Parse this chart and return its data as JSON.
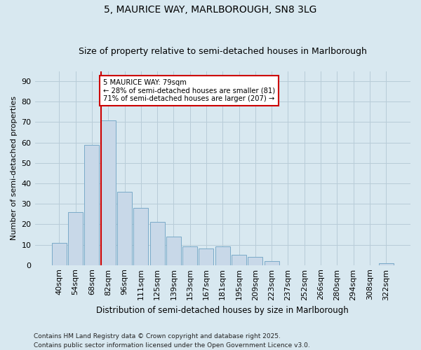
{
  "title1": "5, MAURICE WAY, MARLBOROUGH, SN8 3LG",
  "title2": "Size of property relative to semi-detached houses in Marlborough",
  "xlabel": "Distribution of semi-detached houses by size in Marlborough",
  "ylabel": "Number of semi-detached properties",
  "categories": [
    "40sqm",
    "54sqm",
    "68sqm",
    "82sqm",
    "96sqm",
    "111sqm",
    "125sqm",
    "139sqm",
    "153sqm",
    "167sqm",
    "181sqm",
    "195sqm",
    "209sqm",
    "223sqm",
    "237sqm",
    "252sqm",
    "266sqm",
    "280sqm",
    "294sqm",
    "308sqm",
    "322sqm"
  ],
  "values": [
    11,
    26,
    59,
    71,
    36,
    28,
    21,
    14,
    9,
    8,
    9,
    5,
    4,
    2,
    0,
    0,
    0,
    0,
    0,
    0,
    1
  ],
  "bar_color": "#c8d8e8",
  "bar_edge_color": "#7aaac8",
  "property_line_bin": 3,
  "property_sqm": 79,
  "annotation_text": "5 MAURICE WAY: 79sqm\n← 28% of semi-detached houses are smaller (81)\n71% of semi-detached houses are larger (207) →",
  "annotation_box_color": "#ffffff",
  "annotation_box_edge_color": "#cc0000",
  "red_line_color": "#cc0000",
  "footer": "Contains HM Land Registry data © Crown copyright and database right 2025.\nContains public sector information licensed under the Open Government Licence v3.0.",
  "ylim": [
    0,
    95
  ],
  "yticks": [
    0,
    10,
    20,
    30,
    40,
    50,
    60,
    70,
    80,
    90
  ],
  "grid_color": "#b8ccd8",
  "bg_color": "#d8e8f0",
  "title1_fontsize": 10,
  "title2_fontsize": 9,
  "tick_fontsize": 8,
  "ylabel_fontsize": 8,
  "xlabel_fontsize": 8.5,
  "footer_fontsize": 6.5
}
